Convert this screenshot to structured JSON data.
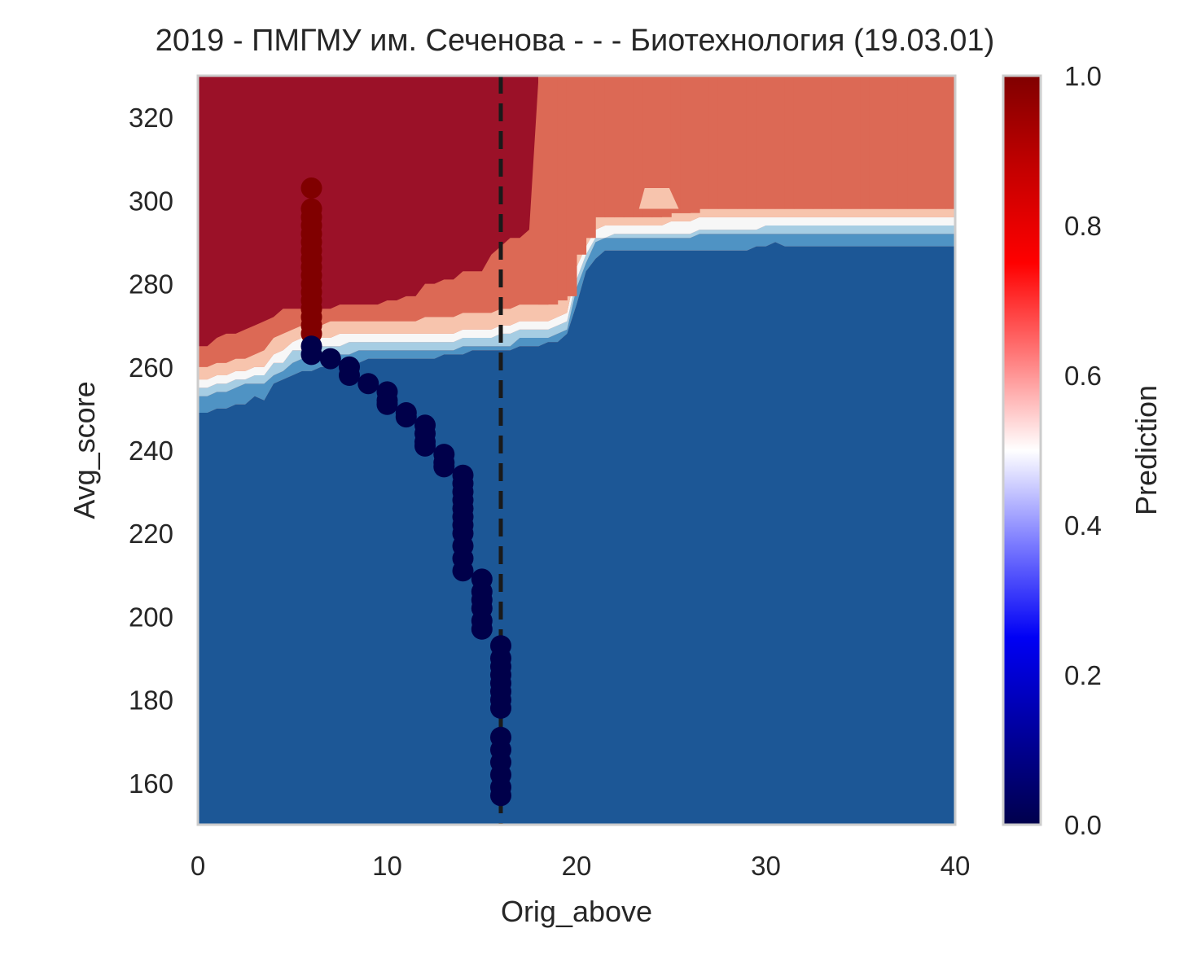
{
  "chart_data": {
    "type": "heatmap",
    "title": "2019 - ПМГМУ им. Сеченова - - - Биотехнология (19.03.01)",
    "xlabel": "Orig_above",
    "ylabel": "Avg_score",
    "xlim": [
      0,
      40
    ],
    "ylim": [
      150,
      330
    ],
    "x_ticks": [
      "0",
      "10",
      "20",
      "30",
      "40"
    ],
    "x_tick_values": [
      0,
      10,
      20,
      30,
      40
    ],
    "y_ticks": [
      "160",
      "180",
      "200",
      "220",
      "240",
      "260",
      "280",
      "300",
      "320"
    ],
    "y_tick_values": [
      160,
      180,
      200,
      220,
      240,
      260,
      280,
      300,
      320
    ],
    "grid": false,
    "colorbar": {
      "label": "Prediction",
      "range": [
        0.0,
        1.0
      ],
      "ticks": [
        "0.0",
        "0.2",
        "0.4",
        "0.6",
        "0.8",
        "1.0"
      ],
      "tick_values": [
        0,
        0.2,
        0.4,
        0.6,
        0.8,
        1.0
      ],
      "colormap": "seismic"
    },
    "contour_colors": {
      "blue_0": "#1c5796",
      "blue_1": "#4f93c4",
      "blue_2": "#a6cde3",
      "blue_3": "#d9e8f2",
      "white": "#f7f7f7",
      "red_1": "#f7c4ad",
      "red_2": "#dc6955",
      "red_3": "#9b1128"
    },
    "contour_levels": [
      {
        "name": "boundary_0.1",
        "y": [
          249,
          249,
          250,
          250,
          251,
          251,
          253,
          252,
          256,
          257,
          258,
          259,
          259,
          260,
          260,
          261,
          261,
          261,
          262,
          262,
          262,
          262,
          262,
          262,
          262,
          262,
          263,
          263,
          263,
          264,
          264,
          264,
          264,
          264,
          265,
          265,
          265,
          266,
          266,
          268,
          275,
          283,
          286,
          288,
          288,
          288,
          288,
          288,
          288,
          288,
          288,
          288,
          288,
          288,
          288,
          288,
          288,
          288,
          288,
          289,
          289,
          290,
          289,
          289,
          289,
          289,
          289,
          289,
          289,
          289,
          289,
          289,
          289,
          289,
          289,
          289,
          289,
          289,
          289,
          289,
          289
        ]
      },
      {
        "name": "boundary_0.3",
        "y": [
          253,
          253,
          254,
          254,
          255,
          256,
          256,
          256,
          258,
          259,
          261,
          262,
          262,
          262,
          263,
          263,
          263,
          264,
          264,
          264,
          264,
          264,
          264,
          264,
          264,
          264,
          264,
          264,
          265,
          265,
          265,
          265,
          265,
          265,
          267,
          267,
          267,
          267,
          268,
          269,
          279,
          285,
          290,
          291,
          291,
          291,
          291,
          291,
          291,
          291,
          291,
          291,
          291,
          292,
          292,
          292,
          292,
          292,
          292,
          292,
          292,
          292,
          292,
          292,
          292,
          292,
          292,
          292,
          292,
          292,
          292,
          292,
          292,
          292,
          292,
          292,
          292,
          292,
          292,
          292,
          292
        ]
      },
      {
        "name": "boundary_0.45",
        "y": [
          255,
          255,
          256,
          256,
          257,
          257,
          258,
          258,
          261,
          261,
          264,
          264,
          264,
          265,
          265,
          265,
          266,
          266,
          266,
          266,
          266,
          266,
          266,
          266,
          266,
          266,
          266,
          266,
          267,
          267,
          267,
          267,
          268,
          268,
          269,
          269,
          269,
          269,
          270,
          271,
          281,
          287,
          291,
          291,
          292,
          292,
          292,
          292,
          292,
          292,
          292,
          292,
          292,
          293,
          293,
          293,
          293,
          293,
          293,
          293,
          294,
          294,
          294,
          294,
          294,
          294,
          294,
          294,
          294,
          294,
          294,
          294,
          294,
          294,
          294,
          294,
          294,
          294,
          294,
          294,
          294
        ]
      },
      {
        "name": "boundary_0.55",
        "y": [
          257,
          257,
          258,
          258,
          259,
          259,
          260,
          260,
          263,
          264,
          266,
          267,
          267,
          267,
          267,
          268,
          268,
          268,
          268,
          268,
          268,
          268,
          268,
          268,
          268,
          268,
          268,
          268,
          269,
          269,
          269,
          269,
          270,
          270,
          271,
          271,
          271,
          271,
          272,
          273,
          284,
          289,
          293,
          294,
          294,
          294,
          294,
          294,
          294,
          294,
          295,
          295,
          295,
          296,
          296,
          296,
          296,
          296,
          296,
          296,
          296,
          296,
          296,
          296,
          296,
          296,
          296,
          296,
          296,
          296,
          296,
          296,
          296,
          296,
          296,
          296,
          296,
          296,
          296,
          296,
          296
        ]
      },
      {
        "name": "boundary_0.7",
        "y": [
          260,
          260,
          261,
          261,
          262,
          262,
          263,
          264,
          267,
          268,
          269,
          270,
          270,
          270,
          271,
          271,
          271,
          271,
          271,
          271,
          271,
          271,
          271,
          271,
          272,
          272,
          272,
          272,
          273,
          273,
          273,
          273,
          274,
          274,
          275,
          275,
          275,
          275,
          276,
          277,
          287,
          291,
          296,
          296,
          296,
          296,
          296,
          296,
          296,
          296,
          297,
          297,
          297,
          298,
          298,
          298,
          298,
          298,
          298,
          298,
          298,
          298,
          298,
          298,
          298,
          298,
          298,
          298,
          298,
          298,
          298,
          298,
          298,
          298,
          298,
          298,
          298,
          298,
          298,
          298,
          298
        ]
      },
      {
        "name": "boundary_0.85",
        "y": [
          265,
          265,
          267,
          268,
          268,
          269,
          270,
          271,
          272,
          274,
          274,
          274,
          274,
          274,
          274,
          275,
          275,
          275,
          275,
          275,
          276,
          276,
          277,
          277,
          280,
          280,
          281,
          281,
          283,
          283,
          283,
          287,
          289,
          291,
          291,
          293,
          330,
          330,
          330,
          330,
          330,
          330,
          330,
          330,
          330,
          330,
          330,
          330,
          330,
          330,
          330,
          330,
          330,
          330,
          330,
          330,
          330,
          330,
          330,
          330,
          330,
          330,
          330,
          330,
          330,
          330,
          330,
          330,
          330,
          330,
          330,
          330,
          330,
          330,
          330,
          330,
          330,
          330,
          330,
          330,
          330
        ]
      }
    ],
    "vertical_line": {
      "x": 16,
      "style": "dashed",
      "color": "#1a1a1a"
    },
    "series": [
      {
        "name": "predicted_positive",
        "color": "#800000",
        "x": [
          6,
          6,
          6,
          6,
          6,
          6,
          6,
          6,
          6,
          6,
          6,
          6,
          6,
          6,
          6,
          6,
          6
        ],
        "y": [
          303,
          298,
          296,
          294,
          292,
          290,
          288,
          286,
          284,
          282,
          280,
          278,
          276,
          274,
          272,
          270,
          268
        ]
      },
      {
        "name": "predicted_negative",
        "color": "#00004a",
        "x": [
          6,
          6,
          7,
          8,
          8,
          9,
          10,
          10,
          10,
          11,
          11,
          12,
          12,
          12,
          12,
          13,
          13,
          13,
          14,
          14,
          14,
          14,
          14,
          14,
          14,
          14,
          14,
          14,
          14,
          15,
          15,
          15,
          15,
          15,
          15,
          16,
          16,
          16,
          16,
          16,
          16,
          16,
          16,
          16,
          16,
          16,
          16,
          16,
          16
        ],
        "y": [
          265,
          263,
          262,
          260,
          258,
          256,
          254,
          252,
          251,
          249,
          248,
          246,
          244,
          242,
          241,
          239,
          237,
          236,
          234,
          232,
          230,
          228,
          226,
          224,
          222,
          220,
          217,
          214,
          211,
          209,
          206,
          204,
          202,
          199,
          197,
          193,
          190,
          188,
          186,
          184,
          182,
          180,
          178,
          171,
          168,
          165,
          162,
          159,
          157
        ]
      }
    ]
  }
}
